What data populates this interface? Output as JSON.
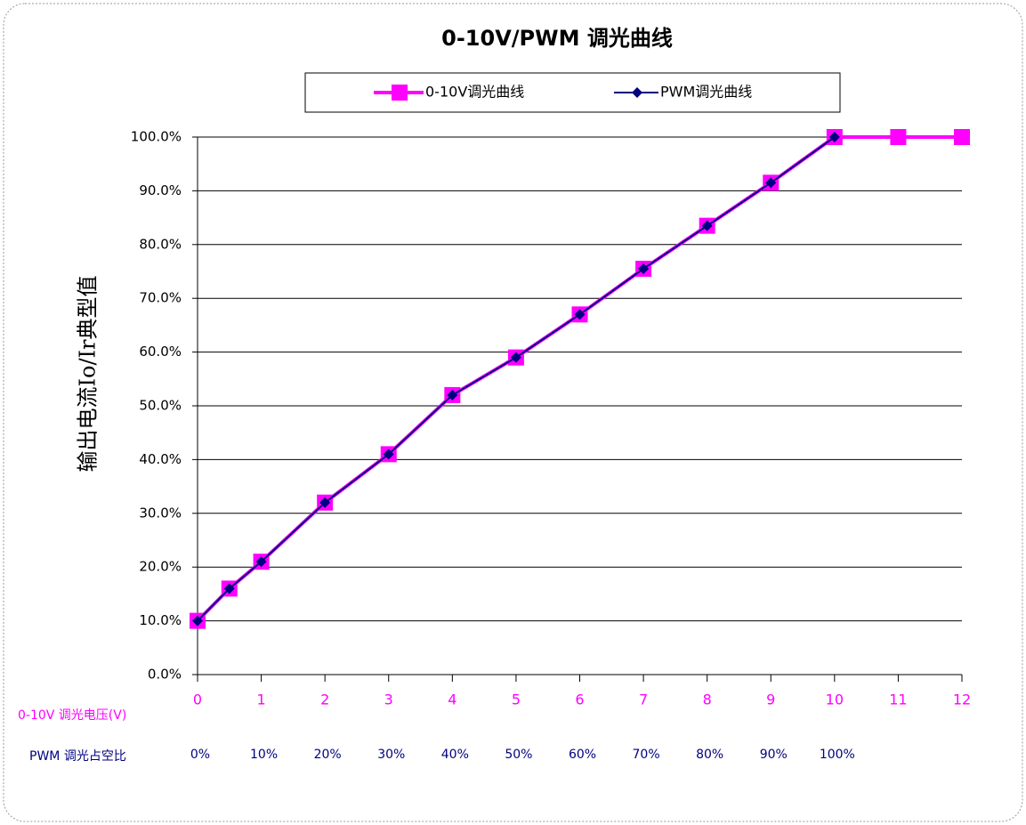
{
  "chart_data": {
    "type": "line",
    "title": "0-10V/PWM 调光曲线",
    "y_label": "输出电流Io/Ir典型值",
    "x_label": "0-10V 调光电压(V)",
    "x2_label": "PWM 调光占空比",
    "xlim": [
      0,
      12
    ],
    "xticks": [
      0,
      1,
      2,
      3,
      4,
      5,
      6,
      7,
      8,
      9,
      10,
      11,
      12
    ],
    "x2ticks": [
      {
        "value": 0,
        "label": "0%"
      },
      {
        "value": 1,
        "label": "10%"
      },
      {
        "value": 2,
        "label": "20%"
      },
      {
        "value": 3,
        "label": "30%"
      },
      {
        "value": 4,
        "label": "40%"
      },
      {
        "value": 5,
        "label": "50%"
      },
      {
        "value": 6,
        "label": "60%"
      },
      {
        "value": 7,
        "label": "70%"
      },
      {
        "value": 8,
        "label": "80%"
      },
      {
        "value": 9,
        "label": "90%"
      },
      {
        "value": 10,
        "label": "100%"
      }
    ],
    "ylim": [
      0,
      100
    ],
    "yticks": [
      {
        "value": 0,
        "label": "0.0%"
      },
      {
        "value": 10,
        "label": "10.0%"
      },
      {
        "value": 20,
        "label": "20.0%"
      },
      {
        "value": 30,
        "label": "30.0%"
      },
      {
        "value": 40,
        "label": "40.0%"
      },
      {
        "value": 50,
        "label": "50.0%"
      },
      {
        "value": 60,
        "label": "60.0%"
      },
      {
        "value": 70,
        "label": "70.0%"
      },
      {
        "value": 80,
        "label": "80.0%"
      },
      {
        "value": 90,
        "label": "90.0%"
      },
      {
        "value": 100,
        "label": "100.0%"
      }
    ],
    "grid": true,
    "legend": "top",
    "series": [
      {
        "name": "0-10V调光曲线",
        "color": "#ff00ff",
        "marker": "square",
        "x": [
          0,
          0.5,
          1,
          2,
          3,
          4,
          5,
          6,
          7,
          8,
          9,
          10,
          11,
          12
        ],
        "values": [
          10,
          16,
          21,
          32,
          41,
          52,
          59,
          67,
          75.5,
          83.5,
          91.5,
          100,
          100,
          100
        ]
      },
      {
        "name": "PWM调光曲线",
        "color": "#000080",
        "marker": "diamond",
        "x": [
          0,
          0.5,
          1,
          2,
          3,
          4,
          5,
          6,
          7,
          8,
          9,
          10
        ],
        "values": [
          10,
          16,
          21,
          32,
          41,
          52,
          59,
          67,
          75.5,
          83.5,
          91.5,
          100
        ]
      }
    ]
  }
}
